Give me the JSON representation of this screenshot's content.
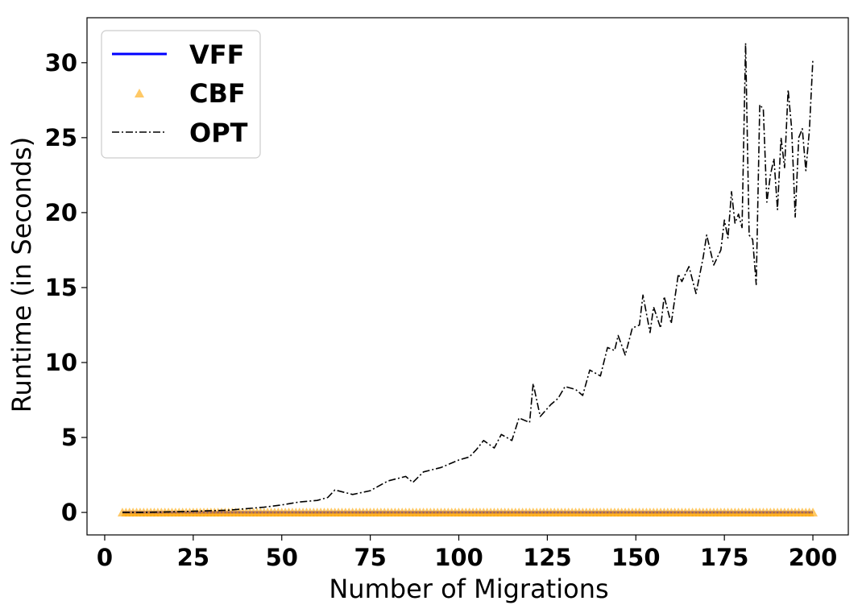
{
  "chart_data": {
    "type": "line",
    "xlabel": "Number of Migrations",
    "ylabel": "Runtime (in Seconds)",
    "xlim": [
      -5,
      210
    ],
    "ylim": [
      -1.5,
      33
    ],
    "xticks": [
      0,
      25,
      50,
      75,
      100,
      125,
      150,
      175,
      200
    ],
    "yticks": [
      0,
      5,
      10,
      15,
      20,
      25,
      30
    ],
    "grid": false,
    "legend_position": "top-left",
    "series": [
      {
        "name": "VFF",
        "style": "solid line",
        "color": "#0000ff",
        "x_range": [
          5,
          200
        ],
        "x_step": 1,
        "constant_value": 0.0
      },
      {
        "name": "CBF",
        "style": "triangle markers",
        "color": "#ffa500",
        "x_range": [
          5,
          200
        ],
        "x_step": 1,
        "constant_value": 0.0
      },
      {
        "name": "OPT",
        "style": "dash-dot line",
        "color": "#000000",
        "points": [
          [
            5,
            0.0
          ],
          [
            10,
            0.0
          ],
          [
            15,
            0.02
          ],
          [
            20,
            0.05
          ],
          [
            25,
            0.08
          ],
          [
            30,
            0.12
          ],
          [
            35,
            0.15
          ],
          [
            40,
            0.25
          ],
          [
            45,
            0.35
          ],
          [
            50,
            0.5
          ],
          [
            55,
            0.7
          ],
          [
            60,
            0.8
          ],
          [
            63,
            1.0
          ],
          [
            65,
            1.5
          ],
          [
            70,
            1.2
          ],
          [
            75,
            1.45
          ],
          [
            80,
            2.1
          ],
          [
            85,
            2.4
          ],
          [
            87,
            2.0
          ],
          [
            90,
            2.7
          ],
          [
            95,
            3.0
          ],
          [
            100,
            3.5
          ],
          [
            103,
            3.7
          ],
          [
            105,
            4.2
          ],
          [
            107,
            4.8
          ],
          [
            110,
            4.3
          ],
          [
            112,
            5.2
          ],
          [
            115,
            4.8
          ],
          [
            117,
            6.3
          ],
          [
            120,
            6.0
          ],
          [
            121,
            8.6
          ],
          [
            123,
            6.4
          ],
          [
            126,
            7.2
          ],
          [
            128,
            7.6
          ],
          [
            130,
            8.4
          ],
          [
            133,
            8.2
          ],
          [
            135,
            7.8
          ],
          [
            137,
            9.5
          ],
          [
            140,
            9.1
          ],
          [
            142,
            11.0
          ],
          [
            144,
            10.8
          ],
          [
            145,
            11.8
          ],
          [
            147,
            10.5
          ],
          [
            149,
            12.3
          ],
          [
            151,
            12.5
          ],
          [
            152,
            14.5
          ],
          [
            154,
            12.0
          ],
          [
            155,
            13.7
          ],
          [
            157,
            12.3
          ],
          [
            158,
            14.4
          ],
          [
            160,
            12.6
          ],
          [
            162,
            15.9
          ],
          [
            163,
            15.4
          ],
          [
            165,
            16.4
          ],
          [
            167,
            14.6
          ],
          [
            169,
            17.0
          ],
          [
            170,
            18.5
          ],
          [
            172,
            16.5
          ],
          [
            174,
            17.5
          ],
          [
            175,
            19.5
          ],
          [
            176,
            18.3
          ],
          [
            177,
            21.4
          ],
          [
            178,
            19.3
          ],
          [
            179,
            19.9
          ],
          [
            180,
            19.0
          ],
          [
            181,
            31.3
          ],
          [
            182,
            18.5
          ],
          [
            183,
            18.2
          ],
          [
            184,
            15.2
          ],
          [
            185,
            27.2
          ],
          [
            186,
            26.9
          ],
          [
            187,
            20.7
          ],
          [
            188,
            22.5
          ],
          [
            189,
            23.6
          ],
          [
            190,
            20.2
          ],
          [
            191,
            25.0
          ],
          [
            192,
            23.0
          ],
          [
            193,
            28.2
          ],
          [
            194,
            25.6
          ],
          [
            195,
            19.7
          ],
          [
            196,
            25.0
          ],
          [
            197,
            25.6
          ],
          [
            198,
            22.8
          ],
          [
            199,
            25.5
          ],
          [
            200,
            30.2
          ]
        ]
      }
    ]
  }
}
